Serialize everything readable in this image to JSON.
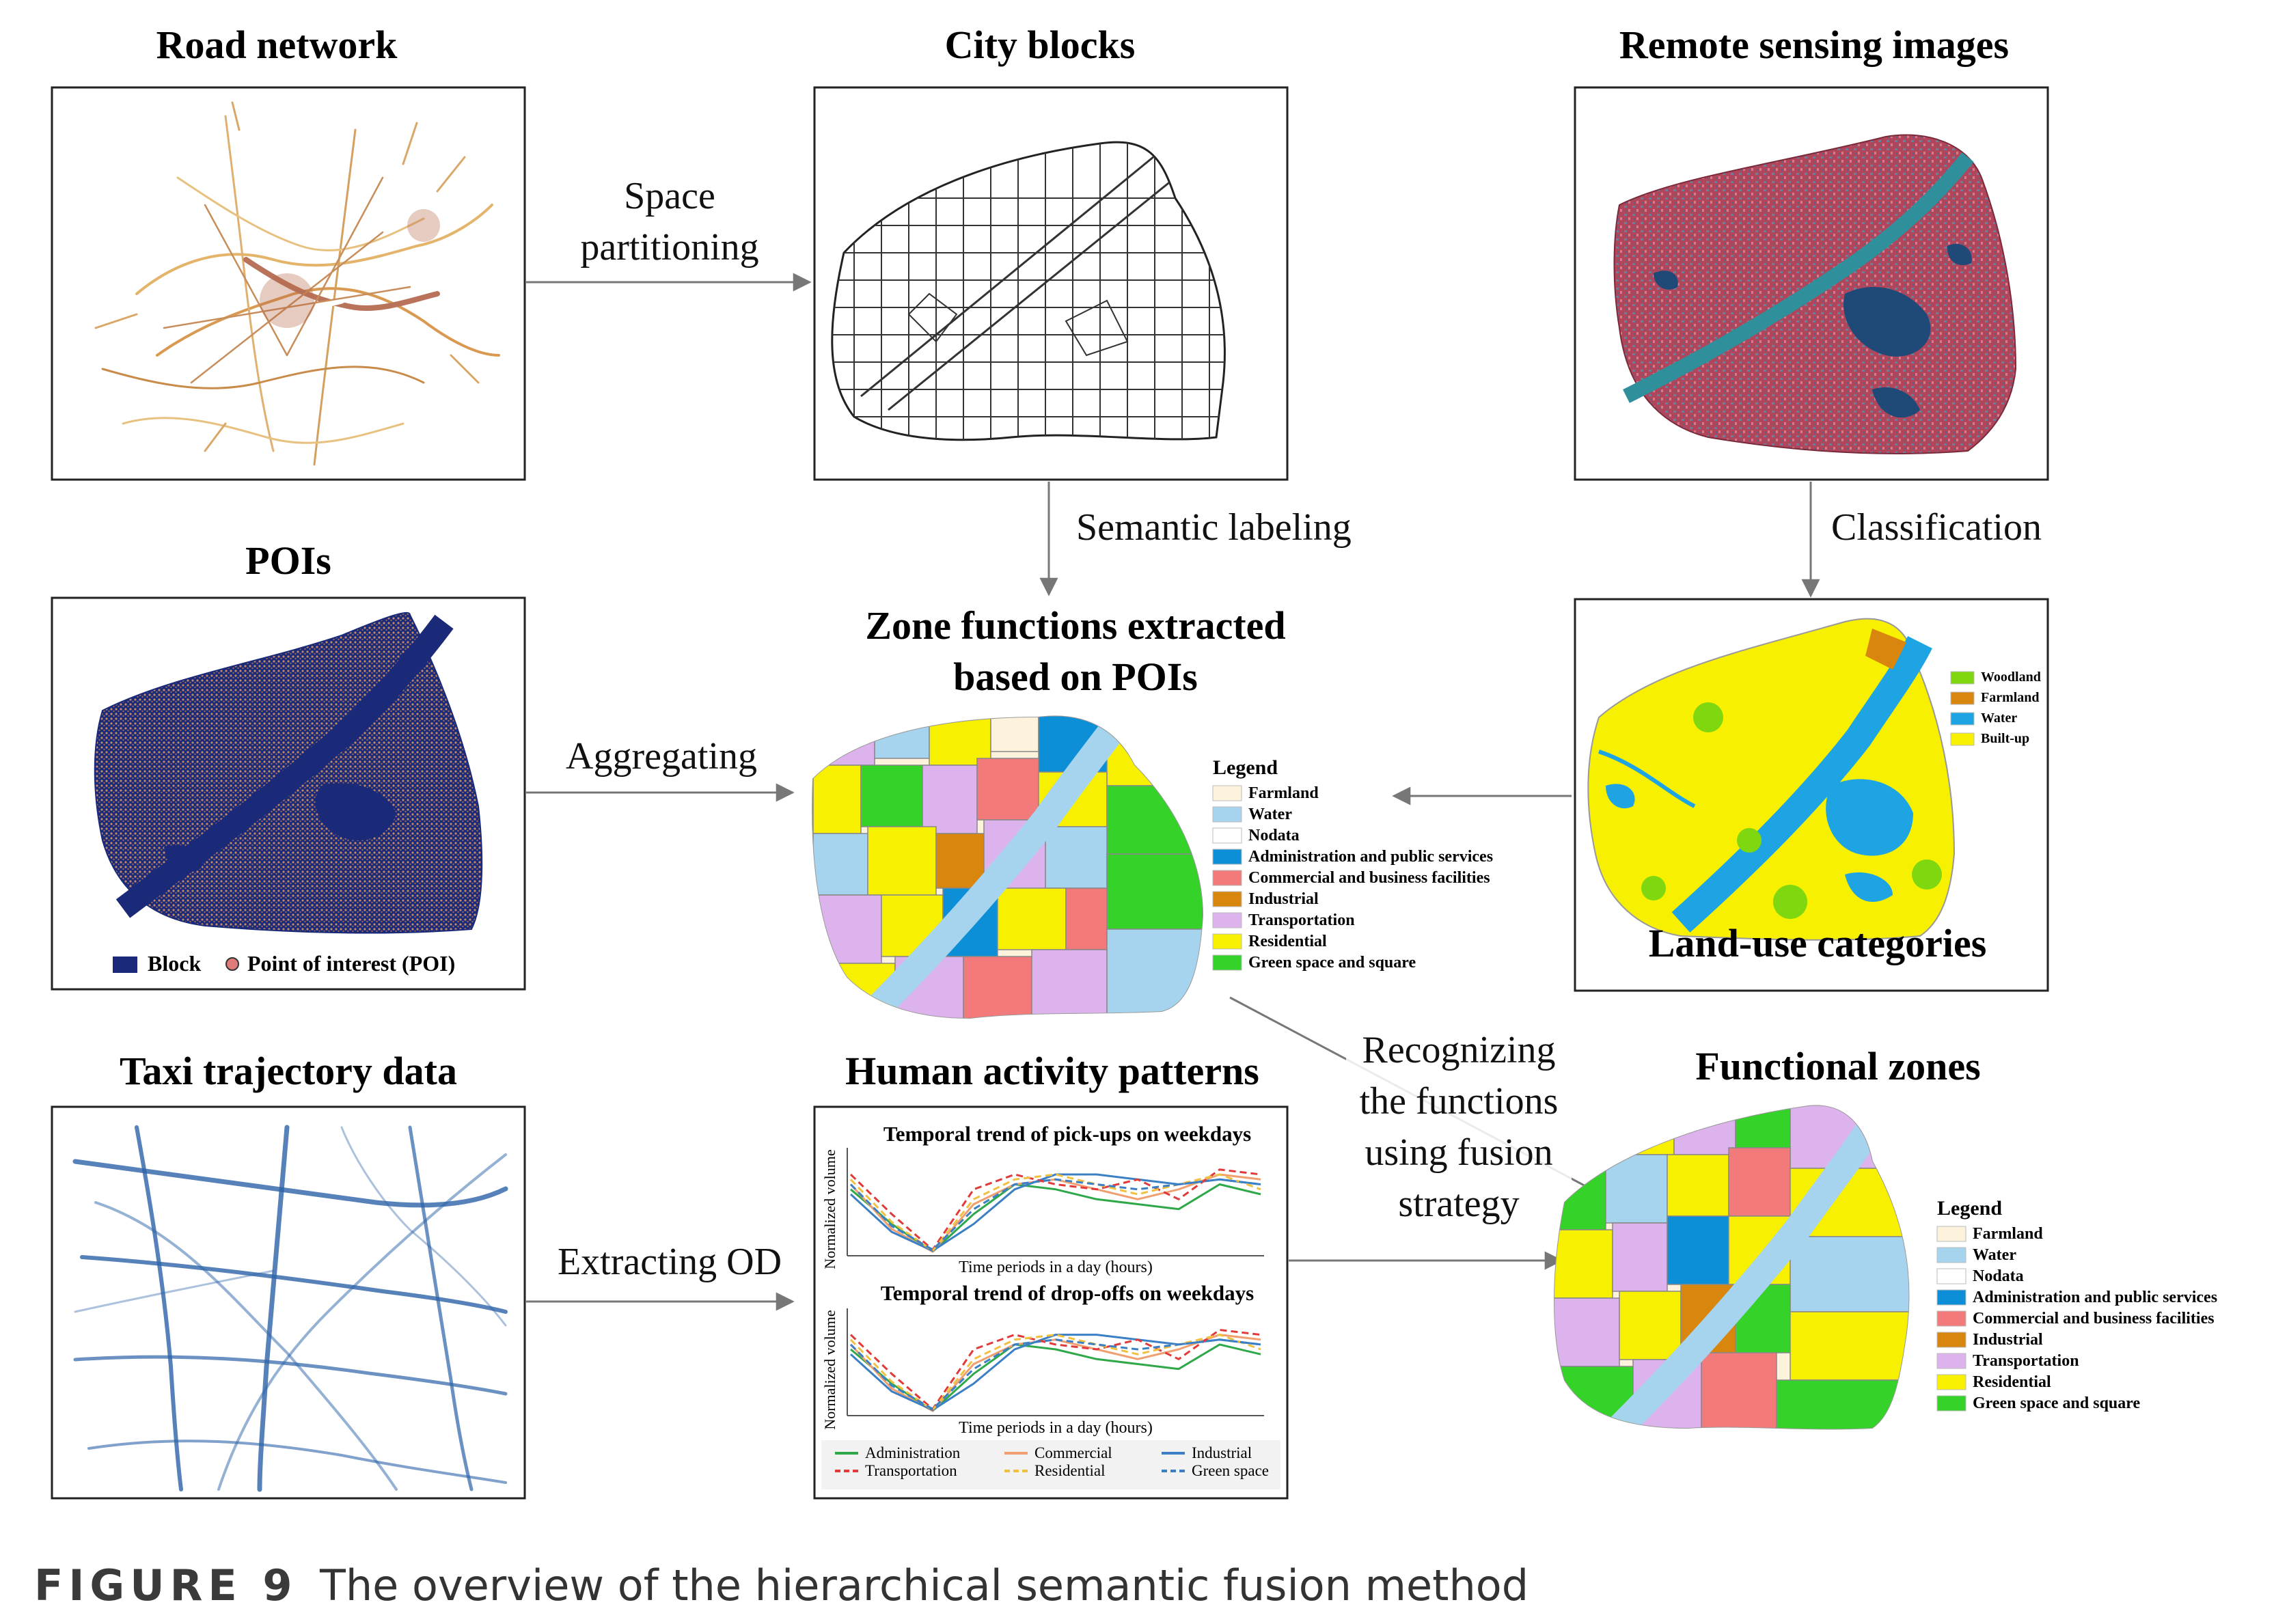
{
  "panels": {
    "road_network": {
      "title": "Road network"
    },
    "city_blocks": {
      "title": "City blocks"
    },
    "remote_sensing": {
      "title": "Remote sensing images"
    },
    "pois": {
      "title": "POIs",
      "legend": {
        "block": "Block",
        "poi": "Point of interest (POI)"
      }
    },
    "zone_functions": {
      "title_line1": "Zone functions extracted",
      "title_line2": "based on POIs",
      "legend_title": "Legend",
      "legend_items": [
        {
          "label": "Farmland",
          "color": "#fdf2dc"
        },
        {
          "label": "Water",
          "color": "#a6d4ee"
        },
        {
          "label": "Nodata",
          "color": "#ffffff"
        },
        {
          "label": "Administration and public services",
          "color": "#0d8fd8"
        },
        {
          "label": "Commercial and business facilities",
          "color": "#f27a7a"
        },
        {
          "label": "Industrial",
          "color": "#d9860f"
        },
        {
          "label": "Transportation",
          "color": "#dcb3ec"
        },
        {
          "label": "Residential",
          "color": "#f7f000"
        },
        {
          "label": "Green space and square",
          "color": "#35d22a"
        }
      ]
    },
    "land_use": {
      "title": "Land-use categories",
      "legend_items": [
        {
          "label": "Woodland",
          "color": "#7fd80f"
        },
        {
          "label": "Farmland",
          "color": "#d9860f"
        },
        {
          "label": "Water",
          "color": "#1ea4e3"
        },
        {
          "label": "Built-up",
          "color": "#f7f000"
        }
      ]
    },
    "taxi": {
      "title": "Taxi trajectory data"
    },
    "human_activity": {
      "title": "Human activity patterns",
      "chart1_title": "Temporal trend of pick-ups on weekdays",
      "chart2_title": "Temporal trend of drop-offs on weekdays",
      "ylabel": "Normalized volume",
      "xlabel": "Time periods in a day (hours)",
      "legend": [
        "Administration",
        "Commercial",
        "Industrial",
        "Transportation",
        "Residential",
        "Green space"
      ]
    },
    "functional_zones": {
      "title": "Functional zones",
      "legend_title": "Legend",
      "legend_items": [
        {
          "label": "Farmland",
          "color": "#fdf2dc"
        },
        {
          "label": "Water",
          "color": "#a6d4ee"
        },
        {
          "label": "Nodata",
          "color": "#ffffff"
        },
        {
          "label": "Administration and public services",
          "color": "#0d8fd8"
        },
        {
          "label": "Commercial and business facilities",
          "color": "#f27a7a"
        },
        {
          "label": "Industrial",
          "color": "#d9860f"
        },
        {
          "label": "Transportation",
          "color": "#dcb3ec"
        },
        {
          "label": "Residential",
          "color": "#f7f000"
        },
        {
          "label": "Green space and square",
          "color": "#35d22a"
        }
      ]
    }
  },
  "arrows": {
    "space_partitioning_1": "Space",
    "space_partitioning_2": "partitioning",
    "semantic_labeling": "Semantic labeling",
    "classification": "Classification",
    "aggregating": "Aggregating",
    "extracting_od": "Extracting OD",
    "recognizing_1": "Recognizing",
    "recognizing_2": "the functions",
    "recognizing_3": "using fusion",
    "recognizing_4": "strategy"
  },
  "caption": {
    "number": "FIGURE 9",
    "text": "The overview of the hierarchical semantic fusion method"
  }
}
